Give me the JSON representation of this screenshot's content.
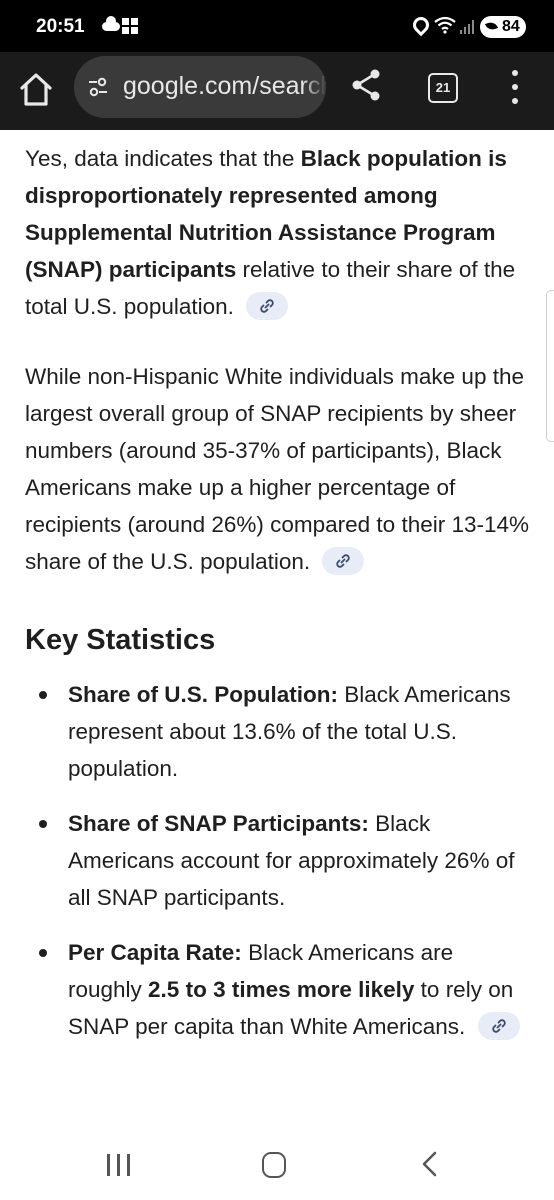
{
  "status_bar": {
    "time": "20:51",
    "battery": "84",
    "icons": [
      "cloud-icon",
      "windows-icon",
      "location-icon",
      "wifi-icon",
      "signal-icon",
      "battery-icon"
    ]
  },
  "toolbar": {
    "url": "google.com/search",
    "tab_count": "21",
    "icons": [
      "home-icon",
      "tune-icon",
      "share-icon",
      "tabs-icon",
      "more-vert-icon"
    ]
  },
  "content": {
    "para1": {
      "t1": "Yes, data indicates that the ",
      "b1": "Black population is disproportionately represented among Supplemental Nutrition Assistance Program (SNAP) participants",
      "t2": " relative to their share of the total U.S. population."
    },
    "para2": {
      "text": "While non-Hispanic White individuals make up the largest overall group of SNAP recipients by sheer numbers (around 35-37% of participants), Black Americans make up a higher percentage of recipients (around 26%) compared to their 13-14% share of the U.S. population."
    },
    "heading": "Key Statistics",
    "bullets": [
      {
        "label": "Share of U.S. Population:",
        "text": " Black Americans represent about 13.6% of the total U.S. population."
      },
      {
        "label": "Share of SNAP Participants:",
        "text": " Black Americans account for approximately 26% of all SNAP participants."
      },
      {
        "label": "Per Capita Rate:",
        "t1": " Black Americans are roughly ",
        "b1": "2.5 to 3 times more likely",
        "t2": " to rely on SNAP per capita than White Americans."
      }
    ]
  },
  "nav_bar": {
    "icons": [
      "recents-icon",
      "home-icon",
      "back-icon"
    ]
  },
  "colors": {
    "status_bar_bg": "#000000",
    "toolbar_bg": "#1b1b1b",
    "urlbar_bg": "#3a3a3a",
    "cite_chip_bg": "#e7ecf7",
    "text": "#1f1f1f"
  }
}
